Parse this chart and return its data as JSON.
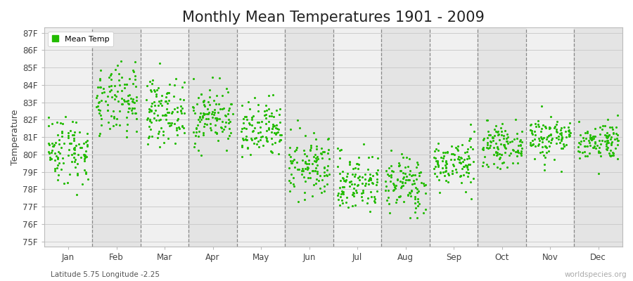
{
  "title": "Monthly Mean Temperatures 1901 - 2009",
  "ylabel": "Temperature",
  "subtitle": "Latitude 5.75 Longitude -2.25",
  "watermark": "worldspecies.org",
  "yticks": [
    75,
    76,
    77,
    78,
    79,
    80,
    81,
    82,
    83,
    84,
    85,
    86,
    87
  ],
  "ylim": [
    74.7,
    87.3
  ],
  "months": [
    "Jan",
    "Feb",
    "Mar",
    "Apr",
    "May",
    "Jun",
    "Jul",
    "Aug",
    "Sep",
    "Oct",
    "Nov",
    "Dec"
  ],
  "dot_color": "#22bb00",
  "bg_color_light": "#f0f0f0",
  "bg_color_dark": "#e4e4e4",
  "grid_color": "#cccccc",
  "legend_label": "Mean Temp",
  "title_fontsize": 15,
  "axis_label_fontsize": 9,
  "tick_fontsize": 8.5,
  "n_years": 109,
  "seed": 42,
  "monthly_means": [
    80.3,
    83.0,
    82.5,
    82.2,
    81.3,
    79.3,
    78.4,
    78.3,
    79.5,
    80.5,
    81.0,
    80.8
  ],
  "monthly_stds": [
    1.0,
    1.0,
    0.9,
    0.85,
    0.85,
    0.9,
    0.85,
    0.85,
    0.7,
    0.55,
    0.65,
    0.55
  ]
}
